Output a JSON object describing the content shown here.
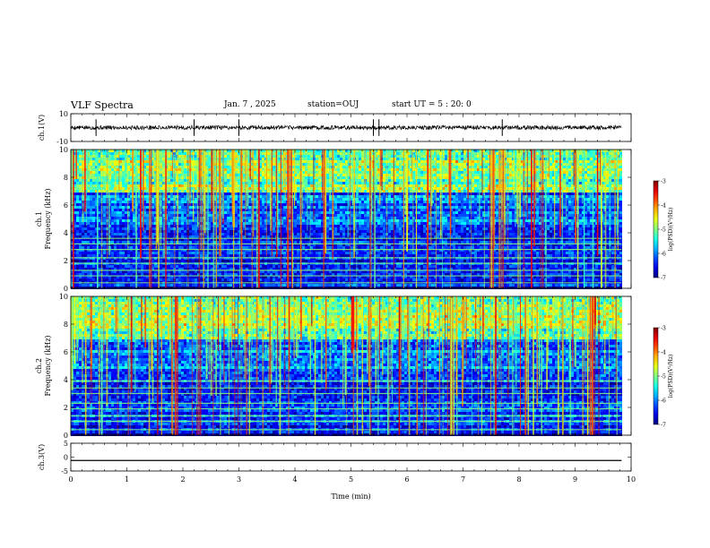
{
  "header": {
    "title": "VLF Spectra",
    "date": "Jan. 7 , 2025",
    "station": "station=OUJ",
    "start": "start UT = 5 : 20: 0"
  },
  "chart_data": [
    {
      "type": "line",
      "name": "ch1-voltage",
      "ylabel": "ch.1(V)",
      "ylim": [
        -10,
        10
      ],
      "yticks": [
        "10",
        "-10"
      ],
      "baseline": 0,
      "description_values": {
        "noise_level": 1.5,
        "spike_times_min": [
          0.45,
          2.2,
          3.0,
          5.4,
          5.5,
          7.7
        ]
      }
    },
    {
      "type": "heatmap",
      "name": "ch1-spectrogram",
      "ylabel_top": "ch.1",
      "ylabel": "Frequency (kHz)",
      "ylim": [
        0,
        10
      ],
      "yticks": [
        "0",
        "2",
        "4",
        "6",
        "8",
        "10"
      ],
      "xlim": [
        0,
        10
      ],
      "data_extent_min": 9.83,
      "colorbar": {
        "label": "log(PSD)(V²/Hz)",
        "range": [
          -7,
          -3
        ],
        "ticks": [
          "-3",
          "-4",
          "-5",
          "-6",
          "-7"
        ]
      },
      "background_level": -6.4,
      "bands_khz": [
        0.4,
        0.9,
        1.3,
        1.8,
        2.2,
        2.8,
        3.2,
        3.6
      ],
      "seed": 11
    },
    {
      "type": "heatmap",
      "name": "ch2-spectrogram",
      "ylabel_top": "ch.2",
      "ylabel": "Frequency (kHz)",
      "ylim": [
        0,
        10
      ],
      "yticks": [
        "0",
        "2",
        "4",
        "6",
        "8",
        "10"
      ],
      "xlim": [
        0,
        10
      ],
      "data_extent_min": 9.83,
      "colorbar": {
        "label": "log(PSD)(V²/Hz)",
        "range": [
          -7,
          -3
        ],
        "ticks": [
          "-3",
          "-4",
          "-5",
          "-6",
          "-7"
        ]
      },
      "background_level": -6.3,
      "bands_khz": [
        0.4,
        1.0,
        1.4,
        1.9,
        2.3,
        3.0,
        3.4,
        3.9
      ],
      "seed": 23
    },
    {
      "type": "line",
      "name": "ch3-voltage",
      "ylabel": "ch.3(V)",
      "ylim": [
        -5,
        5
      ],
      "yticks": [
        "5",
        "0",
        "-5"
      ],
      "constant_value": -1.2
    }
  ],
  "xaxis": {
    "label": "Time (min)",
    "range": [
      0,
      10
    ],
    "ticks": [
      "0",
      "1",
      "2",
      "3",
      "4",
      "5",
      "6",
      "7",
      "8",
      "9",
      "10"
    ]
  }
}
